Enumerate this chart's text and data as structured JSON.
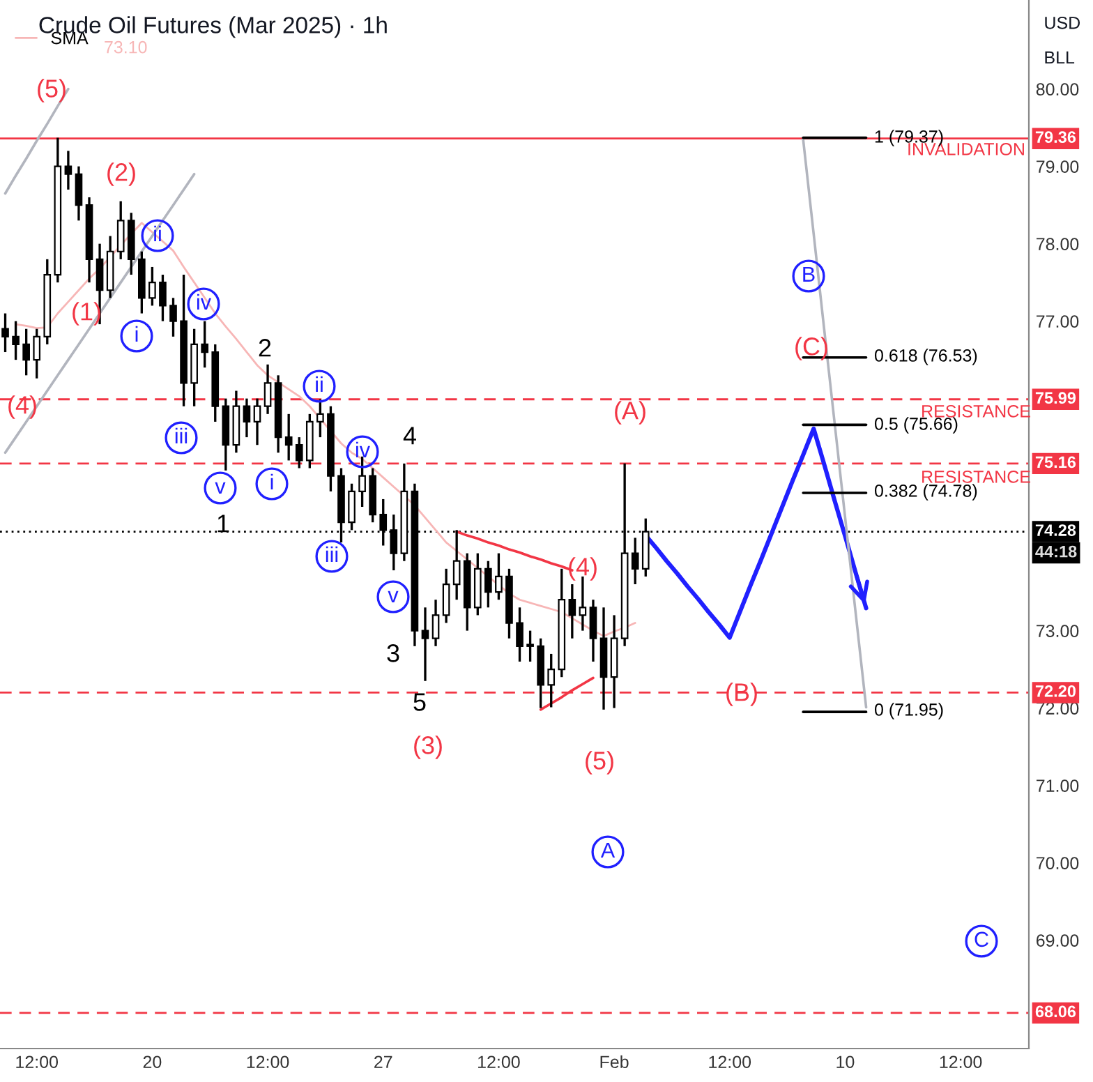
{
  "chart_data": {
    "type": "candlestick",
    "title": "Crude Oil Futures (Mar 2025) · 1h",
    "categories": [
      null,
      null,
      null,
      "12:00",
      null,
      null,
      null,
      null,
      null,
      null,
      null,
      null,
      null,
      null,
      "20",
      null,
      null,
      null,
      null,
      null,
      null,
      null,
      null,
      null,
      null,
      "12:00",
      null,
      null,
      null,
      null,
      null,
      null,
      null,
      null,
      null,
      null,
      "27",
      null,
      null,
      null,
      null,
      null,
      null,
      null,
      null,
      null,
      null,
      "12:00",
      null,
      null,
      null,
      null,
      null,
      null,
      null,
      null,
      null,
      null,
      "Feb",
      null,
      null,
      null,
      null,
      null,
      null,
      null,
      null,
      null,
      null,
      "12:00",
      null,
      null,
      null,
      null,
      null,
      null,
      null,
      null,
      null,
      null,
      "10",
      null,
      null,
      null,
      null,
      null,
      null,
      null,
      null,
      null,
      null,
      "12:00",
      null,
      null,
      null,
      null,
      null,
      null
    ],
    "ohlc": [
      [
        76.9,
        77.1,
        76.6,
        76.8
      ],
      [
        76.8,
        77.0,
        76.5,
        76.7
      ],
      [
        76.7,
        76.9,
        76.3,
        76.5
      ],
      [
        76.5,
        76.9,
        76.26,
        76.8
      ],
      [
        76.8,
        77.8,
        76.7,
        77.6
      ],
      [
        77.6,
        79.37,
        77.5,
        79.0
      ],
      [
        79.0,
        79.2,
        78.7,
        78.9
      ],
      [
        78.9,
        79.0,
        78.3,
        78.5
      ],
      [
        78.5,
        78.6,
        77.5,
        77.8
      ],
      [
        77.8,
        78.0,
        76.96,
        77.4
      ],
      [
        77.4,
        78.1,
        77.3,
        77.9
      ],
      [
        77.9,
        78.55,
        77.8,
        78.3
      ],
      [
        78.3,
        78.4,
        77.6,
        77.8
      ],
      [
        77.8,
        77.9,
        77.1,
        77.3
      ],
      [
        77.3,
        77.7,
        77.2,
        77.5
      ],
      [
        77.5,
        77.6,
        77.0,
        77.2
      ],
      [
        77.2,
        77.3,
        76.8,
        77.0
      ],
      [
        77.0,
        77.6,
        75.9,
        76.2
      ],
      [
        76.2,
        76.9,
        75.9,
        76.7
      ],
      [
        76.7,
        77.0,
        76.4,
        76.6
      ],
      [
        76.6,
        76.7,
        75.7,
        75.9
      ],
      [
        75.9,
        76.0,
        75.07,
        75.4
      ],
      [
        75.4,
        76.1,
        75.3,
        75.9
      ],
      [
        75.9,
        76.0,
        75.5,
        75.7
      ],
      [
        75.7,
        76.0,
        75.4,
        75.9
      ],
      [
        75.9,
        76.44,
        75.8,
        76.2
      ],
      [
        76.2,
        76.3,
        75.3,
        75.5
      ],
      [
        75.5,
        75.8,
        75.2,
        75.4
      ],
      [
        75.4,
        75.5,
        75.1,
        75.2
      ],
      [
        75.2,
        75.8,
        75.1,
        75.7
      ],
      [
        75.7,
        75.99,
        75.5,
        75.8
      ],
      [
        75.8,
        75.9,
        74.8,
        75.0
      ],
      [
        75.0,
        75.1,
        74.14,
        74.4
      ],
      [
        74.4,
        74.9,
        74.3,
        74.8
      ],
      [
        74.8,
        75.25,
        74.6,
        75.0
      ],
      [
        75.0,
        75.1,
        74.4,
        74.5
      ],
      [
        74.5,
        74.7,
        74.1,
        74.3
      ],
      [
        74.3,
        74.5,
        73.78,
        74.0
      ],
      [
        74.0,
        75.16,
        73.9,
        74.8
      ],
      [
        74.8,
        74.9,
        72.8,
        73.0
      ],
      [
        73.0,
        73.3,
        72.35,
        72.9
      ],
      [
        72.9,
        73.4,
        72.8,
        73.2
      ],
      [
        73.2,
        73.8,
        73.1,
        73.6
      ],
      [
        73.6,
        74.3,
        73.4,
        73.9
      ],
      [
        73.9,
        74.0,
        73.0,
        73.3
      ],
      [
        73.3,
        74.0,
        73.2,
        73.8
      ],
      [
        73.8,
        73.9,
        73.3,
        73.5
      ],
      [
        73.5,
        74.0,
        73.4,
        73.7
      ],
      [
        73.7,
        73.8,
        72.9,
        73.1
      ],
      [
        73.1,
        73.3,
        72.6,
        72.8
      ],
      [
        72.8,
        73.0,
        72.6,
        72.8
      ],
      [
        72.8,
        72.9,
        72.0,
        72.3
      ],
      [
        72.3,
        72.7,
        72.01,
        72.5
      ],
      [
        72.5,
        73.8,
        72.4,
        73.4
      ],
      [
        73.4,
        73.6,
        72.9,
        73.2
      ],
      [
        73.2,
        73.7,
        73.0,
        73.3
      ],
      [
        73.3,
        73.4,
        72.6,
        72.9
      ],
      [
        72.9,
        73.3,
        71.98,
        72.4
      ],
      [
        72.4,
        73.2,
        72.0,
        72.9
      ],
      [
        72.9,
        75.16,
        72.8,
        74.0
      ],
      [
        74.0,
        74.2,
        73.6,
        73.8
      ],
      [
        73.8,
        74.45,
        73.7,
        74.28
      ],
      null,
      null,
      null,
      null,
      null,
      null,
      null,
      null,
      null,
      null,
      null,
      null,
      null,
      null,
      null,
      null,
      null,
      null,
      null,
      null,
      null,
      null,
      null,
      null,
      null,
      null,
      null,
      null,
      null,
      null,
      null,
      null,
      null,
      null,
      null,
      null
    ],
    "series": [
      {
        "type": "line",
        "name": "SMA",
        "color": "#f7b6b6",
        "values": [
          null,
          76.96,
          76.94,
          76.91,
          76.92,
          77.1,
          77.25,
          77.4,
          77.55,
          77.68,
          77.83,
          77.98,
          78.13,
          78.27,
          78.15,
          78.03,
          77.91,
          77.7,
          77.5,
          77.3,
          77.1,
          76.93,
          76.77,
          76.6,
          76.43,
          76.3,
          76.21,
          76.12,
          76.03,
          75.9,
          75.74,
          75.58,
          75.42,
          75.3,
          75.22,
          75.1,
          74.98,
          74.86,
          74.74,
          74.62,
          74.46,
          74.3,
          74.14,
          74.03,
          73.92,
          73.81,
          73.7,
          73.59,
          73.48,
          73.4,
          73.36,
          73.32,
          73.28,
          73.24,
          73.16,
          73.08,
          73.0,
          72.93,
          72.99,
          73.04,
          73.1,
          null,
          null,
          null,
          null,
          null,
          null,
          null,
          null,
          null,
          null,
          null,
          null,
          null,
          null,
          null,
          null,
          null,
          null,
          null,
          null,
          null,
          null,
          null,
          null,
          null,
          null,
          null,
          null,
          null,
          null,
          null,
          null,
          null,
          null,
          null,
          null,
          null
        ]
      },
      {
        "type": "line",
        "color": "#2020ff",
        "values": [
          null,
          null,
          null,
          null,
          null,
          null,
          null,
          null,
          null,
          null,
          null,
          null,
          null,
          null,
          null,
          null,
          null,
          null,
          null,
          null,
          null,
          null,
          null,
          null,
          null,
          null,
          null,
          null,
          null,
          null,
          null,
          null,
          null,
          null,
          null,
          null,
          null,
          null,
          null,
          null,
          null,
          null,
          null,
          null,
          null,
          null,
          null,
          null,
          null,
          null,
          null,
          null,
          null,
          null,
          null,
          null,
          null,
          null,
          null,
          null,
          null,
          74.23,
          74.07,
          73.9,
          73.74,
          73.57,
          73.41,
          73.24,
          73.08,
          72.91,
          73.25,
          73.59,
          73.92,
          74.26,
          74.6,
          74.94,
          75.27,
          75.61,
          75.15,
          74.68,
          74.22,
          73.75,
          73.29,
          null,
          null,
          null,
          null,
          null,
          null,
          null,
          null,
          null,
          null,
          null,
          null,
          null,
          null,
          null
        ]
      },
      {
        "type": "line",
        "color": "#b2b5be",
        "values": [
          78.65,
          78.88,
          79.1,
          79.33,
          79.55,
          79.78,
          80.0,
          null,
          null,
          null,
          null,
          null,
          null,
          null,
          null,
          null,
          null,
          null,
          null,
          null,
          null,
          null,
          null,
          null,
          null,
          null,
          null,
          null,
          null,
          null,
          null,
          null,
          null,
          null,
          null,
          null,
          null,
          null,
          null,
          null,
          null,
          null,
          null,
          null,
          null,
          null,
          null,
          null,
          null,
          null,
          null,
          null,
          null,
          null,
          null,
          null,
          null,
          null,
          null,
          null,
          null,
          null,
          null,
          null,
          null,
          null,
          null,
          null,
          null,
          null,
          null,
          null,
          null,
          null,
          null,
          null,
          null,
          null,
          null,
          null,
          null,
          null,
          null,
          null,
          null,
          null,
          null,
          null,
          null,
          null,
          null,
          null,
          null,
          null,
          null,
          null,
          null,
          null
        ]
      },
      {
        "type": "line",
        "color": "#b2b5be",
        "values": [
          75.3,
          75.5,
          75.7,
          75.9,
          76.1,
          76.3,
          76.5,
          76.7,
          76.9,
          77.1,
          77.3,
          77.5,
          77.7,
          77.9,
          78.1,
          78.3,
          78.5,
          78.7,
          78.9,
          null,
          null,
          null,
          null,
          null,
          null,
          null,
          null,
          null,
          null,
          null,
          null,
          null,
          null,
          null,
          null,
          null,
          null,
          null,
          null,
          null,
          null,
          null,
          null,
          null,
          null,
          null,
          null,
          null,
          null,
          null,
          null,
          null,
          null,
          null,
          null,
          null,
          null,
          null,
          null,
          null,
          null,
          null,
          null,
          null,
          null,
          null,
          null,
          null,
          null,
          null,
          null,
          null,
          null,
          null,
          null,
          null,
          null,
          null,
          null,
          null,
          null,
          null,
          null,
          null,
          null,
          null,
          null,
          null,
          null,
          null,
          null,
          null,
          null,
          null,
          null,
          null,
          null,
          null
        ]
      },
      {
        "type": "line",
        "color": "#b2b5be",
        "values": [
          null,
          null,
          null,
          null,
          null,
          null,
          null,
          null,
          null,
          null,
          null,
          null,
          null,
          null,
          null,
          null,
          null,
          null,
          null,
          null,
          null,
          null,
          null,
          null,
          null,
          null,
          null,
          null,
          null,
          null,
          null,
          null,
          null,
          null,
          null,
          null,
          null,
          null,
          null,
          null,
          null,
          null,
          null,
          null,
          null,
          null,
          null,
          null,
          null,
          null,
          null,
          null,
          null,
          null,
          null,
          null,
          null,
          null,
          null,
          null,
          null,
          null,
          null,
          null,
          null,
          null,
          null,
          null,
          null,
          null,
          null,
          null,
          null,
          null,
          null,
          null,
          79.35,
          78.13,
          76.9,
          75.68,
          74.46,
          73.23,
          72.01,
          null,
          null,
          null,
          null,
          null,
          null,
          null,
          null,
          null,
          null,
          null,
          null,
          null,
          null,
          null
        ]
      },
      {
        "type": "line",
        "color": "#f23645",
        "values": [
          null,
          null,
          null,
          null,
          null,
          null,
          null,
          null,
          null,
          null,
          null,
          null,
          null,
          null,
          null,
          null,
          null,
          null,
          null,
          null,
          null,
          null,
          null,
          null,
          null,
          null,
          null,
          null,
          null,
          null,
          null,
          null,
          null,
          null,
          null,
          null,
          null,
          null,
          null,
          null,
          null,
          null,
          null,
          74.28,
          74.23,
          74.19,
          74.14,
          74.1,
          74.05,
          74.01,
          73.96,
          73.92,
          73.87,
          73.83,
          73.78,
          null,
          null,
          null,
          null,
          null,
          null,
          null,
          null,
          null,
          null,
          null,
          null,
          null,
          null,
          null,
          null,
          null,
          null,
          null,
          null,
          null,
          null,
          null,
          null,
          null,
          null,
          null,
          null,
          null,
          null,
          null,
          null,
          null,
          null,
          null,
          null,
          null,
          null,
          null,
          null,
          null,
          null,
          null
        ]
      },
      {
        "type": "line",
        "color": "#f23645",
        "values": [
          null,
          null,
          null,
          null,
          null,
          null,
          null,
          null,
          null,
          null,
          null,
          null,
          null,
          null,
          null,
          null,
          null,
          null,
          null,
          null,
          null,
          null,
          null,
          null,
          null,
          null,
          null,
          null,
          null,
          null,
          null,
          null,
          null,
          null,
          null,
          null,
          null,
          null,
          null,
          null,
          null,
          null,
          null,
          null,
          null,
          null,
          null,
          null,
          null,
          null,
          null,
          71.98,
          72.06,
          72.14,
          72.23,
          72.31,
          72.39,
          null,
          null,
          null,
          null,
          null,
          null,
          null,
          null,
          null,
          null,
          null,
          null,
          null,
          null,
          null,
          null,
          null,
          null,
          null,
          null,
          null,
          null,
          null,
          null,
          null,
          null,
          null,
          null,
          null,
          null,
          null,
          null,
          null,
          null,
          null,
          null,
          null,
          null,
          null,
          null,
          null
        ]
      },
      {
        "type": "line",
        "color": "#000000",
        "values": [
          null,
          null,
          null,
          null,
          null,
          null,
          null,
          null,
          null,
          null,
          null,
          null,
          null,
          null,
          null,
          null,
          null,
          null,
          null,
          null,
          null,
          null,
          null,
          null,
          null,
          null,
          null,
          null,
          null,
          null,
          null,
          null,
          null,
          null,
          null,
          null,
          null,
          null,
          null,
          null,
          null,
          null,
          null,
          null,
          null,
          null,
          null,
          null,
          null,
          null,
          null,
          null,
          null,
          null,
          null,
          null,
          null,
          null,
          null,
          null,
          null,
          null,
          null,
          null,
          null,
          null,
          null,
          null,
          null,
          null,
          null,
          null,
          null,
          null,
          null,
          null,
          79.37,
          79.37,
          79.37,
          79.37,
          79.37,
          79.37,
          79.37,
          null,
          null,
          null,
          null,
          null,
          null,
          null,
          null,
          null,
          null,
          null,
          null,
          null,
          null,
          null
        ]
      },
      {
        "type": "line",
        "color": "#000000",
        "values": [
          null,
          null,
          null,
          null,
          null,
          null,
          null,
          null,
          null,
          null,
          null,
          null,
          null,
          null,
          null,
          null,
          null,
          null,
          null,
          null,
          null,
          null,
          null,
          null,
          null,
          null,
          null,
          null,
          null,
          null,
          null,
          null,
          null,
          null,
          null,
          null,
          null,
          null,
          null,
          null,
          null,
          null,
          null,
          null,
          null,
          null,
          null,
          null,
          null,
          null,
          null,
          null,
          null,
          null,
          null,
          null,
          null,
          null,
          null,
          null,
          null,
          null,
          null,
          null,
          null,
          null,
          null,
          null,
          null,
          null,
          null,
          null,
          null,
          null,
          null,
          null,
          76.53,
          76.53,
          76.53,
          76.53,
          76.53,
          76.53,
          76.53,
          null,
          null,
          null,
          null,
          null,
          null,
          null,
          null,
          null,
          null,
          null,
          null,
          null,
          null,
          null
        ]
      },
      {
        "type": "line",
        "color": "#000000",
        "values": [
          null,
          null,
          null,
          null,
          null,
          null,
          null,
          null,
          null,
          null,
          null,
          null,
          null,
          null,
          null,
          null,
          null,
          null,
          null,
          null,
          null,
          null,
          null,
          null,
          null,
          null,
          null,
          null,
          null,
          null,
          null,
          null,
          null,
          null,
          null,
          null,
          null,
          null,
          null,
          null,
          null,
          null,
          null,
          null,
          null,
          null,
          null,
          null,
          null,
          null,
          null,
          null,
          null,
          null,
          null,
          null,
          null,
          null,
          null,
          null,
          null,
          null,
          null,
          null,
          null,
          null,
          null,
          null,
          null,
          null,
          null,
          null,
          null,
          null,
          null,
          null,
          75.66,
          75.66,
          75.66,
          75.66,
          75.66,
          75.66,
          75.66,
          null,
          null,
          null,
          null,
          null,
          null,
          null,
          null,
          null,
          null,
          null,
          null,
          null,
          null,
          null
        ]
      },
      {
        "type": "line",
        "color": "#000000",
        "values": [
          null,
          null,
          null,
          null,
          null,
          null,
          null,
          null,
          null,
          null,
          null,
          null,
          null,
          null,
          null,
          null,
          null,
          null,
          null,
          null,
          null,
          null,
          null,
          null,
          null,
          null,
          null,
          null,
          null,
          null,
          null,
          null,
          null,
          null,
          null,
          null,
          null,
          null,
          null,
          null,
          null,
          null,
          null,
          null,
          null,
          null,
          null,
          null,
          null,
          null,
          null,
          null,
          null,
          null,
          null,
          null,
          null,
          null,
          null,
          null,
          null,
          null,
          null,
          null,
          null,
          null,
          null,
          null,
          null,
          null,
          null,
          null,
          null,
          null,
          null,
          null,
          74.78,
          74.78,
          74.78,
          74.78,
          74.78,
          74.78,
          74.78,
          null,
          null,
          null,
          null,
          null,
          null,
          null,
          null,
          null,
          null,
          null,
          null,
          null,
          null,
          null
        ]
      },
      {
        "type": "line",
        "color": "#000000",
        "values": [
          null,
          null,
          null,
          null,
          null,
          null,
          null,
          null,
          null,
          null,
          null,
          null,
          null,
          null,
          null,
          null,
          null,
          null,
          null,
          null,
          null,
          null,
          null,
          null,
          null,
          null,
          null,
          null,
          null,
          null,
          null,
          null,
          null,
          null,
          null,
          null,
          null,
          null,
          null,
          null,
          null,
          null,
          null,
          null,
          null,
          null,
          null,
          null,
          null,
          null,
          null,
          null,
          null,
          null,
          null,
          null,
          null,
          null,
          null,
          null,
          null,
          null,
          null,
          null,
          null,
          null,
          null,
          null,
          null,
          null,
          null,
          null,
          null,
          null,
          null,
          null,
          71.95,
          71.95,
          71.95,
          71.95,
          71.95,
          71.95,
          71.95,
          null,
          null,
          null,
          null,
          null,
          null,
          null,
          null,
          null,
          null,
          null,
          null,
          null,
          null,
          null
        ]
      }
    ],
    "ref_lines": [
      {
        "axis": "y",
        "value": 79.36,
        "label": "79.36",
        "color": "#f23645",
        "line_style": "solid"
      },
      {
        "axis": "y",
        "value": 75.99,
        "label": "75.99",
        "color": "#f23645",
        "line_style": "dashed"
      },
      {
        "axis": "y",
        "value": 75.16,
        "label": "75.16",
        "color": "#f23645",
        "line_style": "dashed"
      },
      {
        "axis": "y",
        "value": 74.28,
        "label": "74.28",
        "color": "#000000",
        "line_style": "dotted"
      },
      {
        "axis": "y",
        "value": 72.2,
        "label": "72.20",
        "color": "#f23645",
        "line_style": "dashed"
      },
      {
        "axis": "y",
        "value": 68.06,
        "label": "68.06",
        "color": "#f23645",
        "line_style": "dashed"
      }
    ],
    "annotations": [
      "(5)",
      "(2)",
      "(1)",
      "(4)",
      "(A)",
      "(4)",
      "(B)",
      "(3)",
      "(5)",
      "(C)",
      "INVALIDATION",
      "RESISTANCE",
      "RESISTANCE",
      "ii",
      "iv",
      "i",
      "iii",
      "v",
      "ii",
      "iv",
      "i",
      "iii",
      "v",
      "A",
      "B",
      "C",
      "1",
      "2",
      "4",
      "3",
      "5",
      "1 (79.37)",
      "0.618 (76.53)",
      "0.5 (75.66)",
      "0.382 (74.78)",
      "0 (71.95)",
      "73.10",
      "44:18",
      "USD",
      "BLL"
    ],
    "ylim": [
      67.6,
      81.15
    ],
    "yticks": [
      {
        "value": 69,
        "label": "69.00"
      },
      {
        "value": 70,
        "label": "70.00"
      },
      {
        "value": 71,
        "label": "71.00"
      },
      {
        "value": 72,
        "label": "72.00"
      },
      {
        "value": 73,
        "label": "73.00"
      },
      {
        "value": 77,
        "label": "77.00"
      },
      {
        "value": 78,
        "label": "78.00"
      },
      {
        "value": 79,
        "label": "79.00"
      },
      {
        "value": 80,
        "label": "80.00"
      }
    ],
    "grid": false,
    "legend": "top left"
  }
}
